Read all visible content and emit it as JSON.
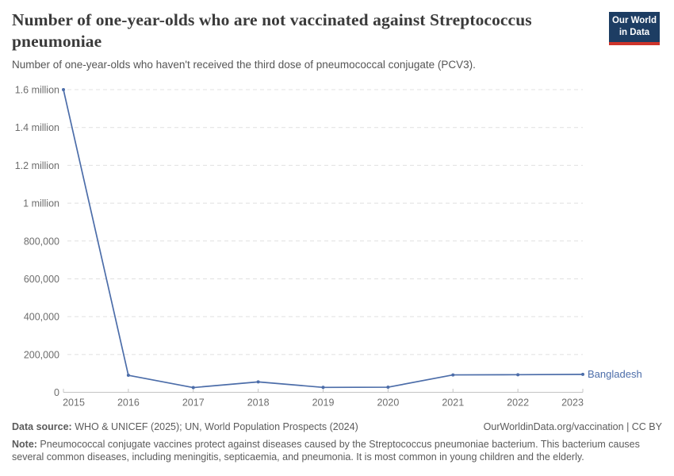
{
  "header": {
    "title": "Number of one-year-olds who are not vaccinated against Streptococcus pneumoniae",
    "subtitle": "Number of one-year-olds who haven't received the third dose of pneumococcal conjugate (PCV3)."
  },
  "logo": {
    "line1": "Our World",
    "line2": "in Data",
    "background_color": "#1d3d63",
    "accent_color": "#ce342b"
  },
  "chart_data": {
    "type": "line",
    "title": "Number of one-year-olds who are not vaccinated against Streptococcus pneumoniae",
    "x": [
      2015,
      2016,
      2017,
      2018,
      2019,
      2020,
      2021,
      2022,
      2023
    ],
    "series": [
      {
        "name": "Bangladesh",
        "color": "#4c6da9",
        "values": [
          1600000,
          90000,
          25000,
          55000,
          26000,
          27000,
          92000,
          93000,
          95000
        ]
      }
    ],
    "ylim": [
      0,
      1600000
    ],
    "yticks": [
      {
        "value": 0,
        "label": "0"
      },
      {
        "value": 200000,
        "label": "200,000"
      },
      {
        "value": 400000,
        "label": "400,000"
      },
      {
        "value": 600000,
        "label": "600,000"
      },
      {
        "value": 800000,
        "label": "800,000"
      },
      {
        "value": 1000000,
        "label": "1 million"
      },
      {
        "value": 1200000,
        "label": "1.2 million"
      },
      {
        "value": 1400000,
        "label": "1.4 million"
      },
      {
        "value": 1600000,
        "label": "1.6 million"
      }
    ],
    "grid": "horizontal-dashed",
    "legend_position": "line-end-label",
    "axis_color": "#c4c4c4",
    "gridline_color": "#e0e0e0",
    "tick_label_color": "#6e6e6e"
  },
  "footer": {
    "data_source_label": "Data source:",
    "data_source_text": " WHO & UNICEF (2025); UN, World Population Prospects (2024)",
    "link_text": "OurWorldinData.org/vaccination | CC BY",
    "note_label": "Note:",
    "note_text": " Pneumococcal conjugate vaccines protect against diseases caused by the Streptococcus pneumoniae bacterium. This bacterium causes several common diseases, including meningitis, septicaemia, and pneumonia. It is most common in young children and the elderly."
  }
}
